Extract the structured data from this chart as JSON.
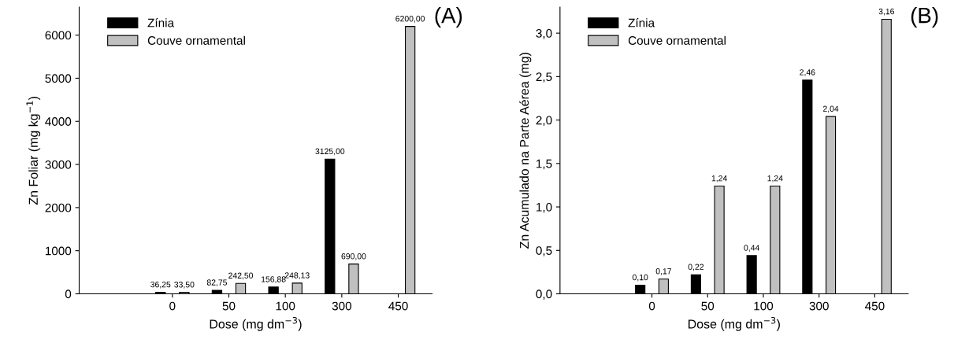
{
  "chart_data": [
    {
      "type": "bar",
      "categories": [
        "0",
        "50",
        "100",
        "300",
        "450"
      ],
      "xlabel": "Dose (mg dm$^{−3}$)",
      "ylabel": "Zn Foliar (mg kg$^{−1}$)",
      "ylim": [
        0,
        6650
      ],
      "yticks": [
        0,
        1000,
        2000,
        3000,
        4000,
        5000,
        6000
      ],
      "legend": "top left",
      "annotations": [
        "(A)"
      ],
      "series": [
        {
          "name": "Zínia",
          "color": "#000000",
          "values": [
            36.25,
            82.75,
            156.88,
            3125.0,
            null
          ],
          "value_labels": [
            "36,25",
            "82,75",
            "156,88",
            "3125,00",
            null
          ]
        },
        {
          "name": "Couve ornamental",
          "color": "#c0c0c0",
          "values": [
            33.5,
            242.5,
            248.13,
            690.0,
            6200.0
          ],
          "value_labels": [
            "33,50",
            "242,50",
            "248,13",
            "690,00",
            "6200,00"
          ]
        }
      ]
    },
    {
      "type": "bar",
      "categories": [
        "0",
        "50",
        "100",
        "300",
        "450"
      ],
      "xlabel": "Dose (mg dm$^{−3}$)",
      "ylabel": "Zn Acumulado na Parte Aérea (mg)",
      "ylim": [
        0,
        3.3
      ],
      "yticks": [
        {
          "value": 0,
          "label": "0,0"
        },
        {
          "value": 0.5,
          "label": "0,5"
        },
        {
          "value": 1.0,
          "label": "1,0"
        },
        {
          "value": 1.5,
          "label": "1,5"
        },
        {
          "value": 2.0,
          "label": "2,0"
        },
        {
          "value": 2.5,
          "label": "2,5"
        },
        {
          "value": 3.0,
          "label": "3,0"
        }
      ],
      "legend": "top left",
      "annotations": [
        "(B)"
      ],
      "series": [
        {
          "name": "Zínia",
          "color": "#000000",
          "values": [
            0.1,
            0.22,
            0.44,
            2.46,
            null
          ],
          "value_labels": [
            "0,10",
            "0,22",
            "0,44",
            "2,46",
            null
          ]
        },
        {
          "name": "Couve ornamental",
          "color": "#c0c0c0",
          "values": [
            0.17,
            1.24,
            1.24,
            2.04,
            3.16
          ],
          "value_labels": [
            "0,17",
            "1,24",
            "1,24",
            "2,04",
            "3,16"
          ]
        }
      ]
    }
  ]
}
